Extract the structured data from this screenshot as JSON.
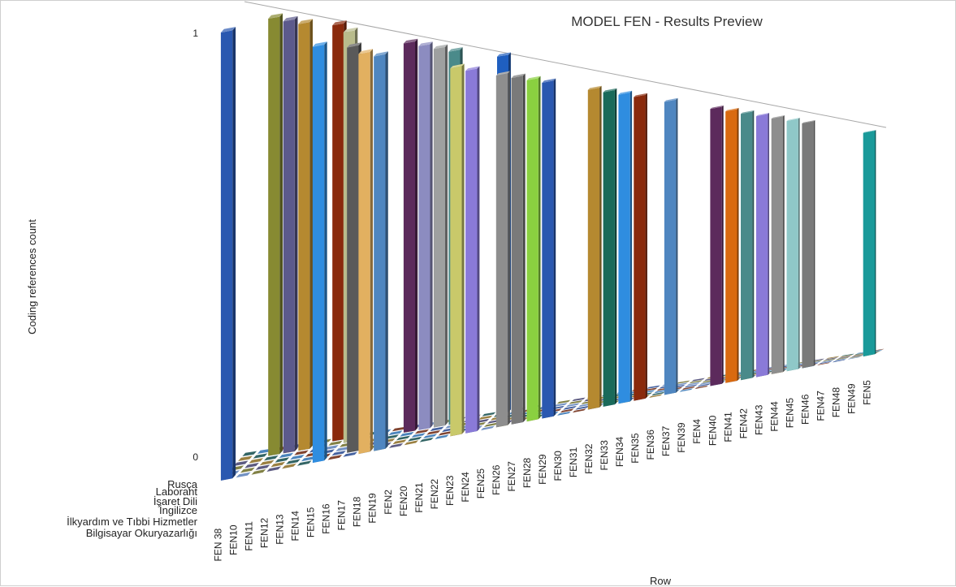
{
  "chart_data": {
    "type": "bar",
    "title": "MODEL FEN - Results Preview",
    "xlabel": "Row",
    "ylabel": "Coding references count",
    "y_ticks": [
      "0",
      "1"
    ],
    "ylim": [
      0,
      1
    ],
    "depth_categories": [
      "Bilgisayar Okuryazarlığı",
      "İlkyardım ve Tıbbi Hizmetler",
      "İngilizce",
      "İşaret Dili",
      "Laborant",
      "Rusça"
    ],
    "categories": [
      "FEN 38",
      "FEN10",
      "FEN11",
      "FEN12",
      "FEN13",
      "FEN14",
      "FEN15",
      "FEN16",
      "FEN17",
      "FEN18",
      "FEN19",
      "FEN2",
      "FEN20",
      "FEN21",
      "FEN22",
      "FEN23",
      "FEN24",
      "FEN25",
      "FEN26",
      "FEN27",
      "FEN28",
      "FEN29",
      "FEN30",
      "FEN31",
      "FEN32",
      "FEN33",
      "FEN34",
      "FEN35",
      "FEN36",
      "FEN37",
      "FEN39",
      "FEN4",
      "FEN40",
      "FEN41",
      "FEN42",
      "FEN43",
      "FEN44",
      "FEN45",
      "FEN46",
      "FEN47",
      "FEN48",
      "FEN49",
      "FEN5"
    ],
    "bars": [
      {
        "category": "FEN 38",
        "series": "Bilgisayar Okuryazarlığı",
        "value": 1,
        "color": "#2a58b0"
      },
      {
        "category": "FEN11",
        "series": "Laborant",
        "value": 1,
        "color": "#878a32"
      },
      {
        "category": "FEN12",
        "series": "Laborant",
        "value": 1,
        "color": "#5c5a8c"
      },
      {
        "category": "FEN13",
        "series": "Laborant",
        "value": 1,
        "color": "#b58930"
      },
      {
        "category": "FEN15",
        "series": "Bilgisayar Okuryazarlığı",
        "value": 1,
        "color": "#2f8de0"
      },
      {
        "category": "FEN15",
        "series": "Rusça",
        "value": 1,
        "color": "#8a2a0c"
      },
      {
        "category": "FEN16",
        "series": "Laborant",
        "value": 1,
        "color": "#b9bc8c"
      },
      {
        "category": "FEN17",
        "series": "İlkyardım ve Tıbbi Hizmetler",
        "value": 1,
        "color": "#5a5a5a"
      },
      {
        "category": "FEN18",
        "series": "Bilgisayar Okuryazarlığı",
        "value": 1,
        "color": "#e2b060"
      },
      {
        "category": "FEN19",
        "series": "Bilgisayar Okuryazarlığı",
        "value": 1,
        "color": "#4f86c0"
      },
      {
        "category": "FEN2",
        "series": "Laborant",
        "value": 1,
        "color": "#5c2a5c"
      },
      {
        "category": "FEN20",
        "series": "Laborant",
        "value": 1,
        "color": "#8c8cc0"
      },
      {
        "category": "FEN21",
        "series": "Laborant",
        "value": 1,
        "color": "#9ea0a0"
      },
      {
        "category": "FEN22",
        "series": "Laborant",
        "value": 1,
        "color": "#4a8a8a"
      },
      {
        "category": "FEN23",
        "series": "Bilgisayar Okuryazarlığı",
        "value": 1,
        "color": "#c9c96a"
      },
      {
        "category": "FEN24",
        "series": "Bilgisayar Okuryazarlığı",
        "value": 1,
        "color": "#8a7ad8"
      },
      {
        "category": "FEN25",
        "series": "Rusça",
        "value": 1,
        "color": "#1f5fc0"
      },
      {
        "category": "FEN26",
        "series": "Bilgisayar Okuryazarlığı",
        "value": 1,
        "color": "#8e8e8e"
      },
      {
        "category": "FEN27",
        "series": "Bilgisayar Okuryazarlığı",
        "value": 1,
        "color": "#7a7a7a"
      },
      {
        "category": "FEN28",
        "series": "Bilgisayar Okuryazarlığı",
        "value": 1,
        "color": "#8ad040"
      },
      {
        "category": "FEN29",
        "series": "Bilgisayar Okuryazarlığı",
        "value": 1,
        "color": "#2a58b0"
      },
      {
        "category": "FEN32",
        "series": "Bilgisayar Okuryazarlığı",
        "value": 1,
        "color": "#b58930"
      },
      {
        "category": "FEN33",
        "series": "Bilgisayar Okuryazarlığı",
        "value": 1,
        "color": "#1a6a5a"
      },
      {
        "category": "FEN34",
        "series": "Bilgisayar Okuryazarlığı",
        "value": 1,
        "color": "#2f8de0"
      },
      {
        "category": "FEN35",
        "series": "Bilgisayar Okuryazarlığı",
        "value": 1,
        "color": "#8a2a0c"
      },
      {
        "category": "FEN37",
        "series": "Bilgisayar Okuryazarlığı",
        "value": 1,
        "color": "#4f86c0"
      },
      {
        "category": "FEN40",
        "series": "Bilgisayar Okuryazarlığı",
        "value": 1,
        "color": "#5c2a5c"
      },
      {
        "category": "FEN41",
        "series": "Bilgisayar Okuryazarlığı",
        "value": 1,
        "color": "#d96a10"
      },
      {
        "category": "FEN42",
        "series": "Bilgisayar Okuryazarlığı",
        "value": 1,
        "color": "#4a8a8a"
      },
      {
        "category": "FEN43",
        "series": "Bilgisayar Okuryazarlığı",
        "value": 1,
        "color": "#8a7ad8"
      },
      {
        "category": "FEN44",
        "series": "Bilgisayar Okuryazarlığı",
        "value": 1,
        "color": "#8e8e8e"
      },
      {
        "category": "FEN45",
        "series": "Bilgisayar Okuryazarlığı",
        "value": 1,
        "color": "#8fc8c8"
      },
      {
        "category": "FEN46",
        "series": "Bilgisayar Okuryazarlığı",
        "value": 1,
        "color": "#7a7a7a"
      },
      {
        "category": "FEN5",
        "series": "Bilgisayar Okuryazarlığı",
        "value": 1,
        "color": "#1a9a9a"
      }
    ],
    "grid": true,
    "legend": "none"
  }
}
